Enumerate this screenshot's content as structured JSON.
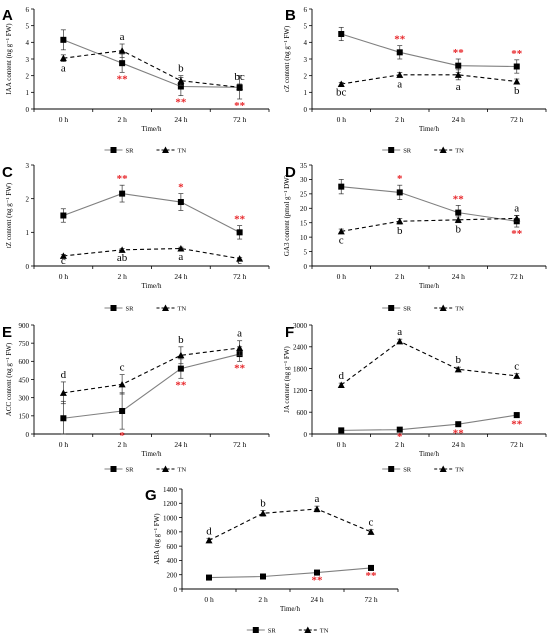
{
  "colors": {
    "sr": "#808080",
    "tn": "#000000",
    "sig": "#e8272b",
    "axis": "#000000"
  },
  "chart_data": [
    {
      "type": "line",
      "panel": "A",
      "categories": [
        "0 h",
        "2 h",
        "24 h",
        "72 h"
      ],
      "xlabel": "Time/h",
      "ylabel": "IAA content (ng g⁻¹ FW)",
      "ylim": [
        0,
        6
      ],
      "yticks": [
        0,
        1,
        2,
        3,
        4,
        5,
        6
      ],
      "series": [
        {
          "name": "SR",
          "values": [
            4.15,
            2.75,
            1.35,
            1.3
          ],
          "errors": [
            0.6,
            0.55,
            0.55,
            0.7
          ]
        },
        {
          "name": "TN",
          "values": [
            3.05,
            3.5,
            1.7,
            1.3
          ],
          "errors": [
            0.2,
            0.4,
            0.3,
            0.2
          ]
        }
      ],
      "letters": [
        "a",
        "a",
        "b",
        "bc"
      ],
      "significance": [
        "",
        "**",
        "**",
        "**"
      ]
    },
    {
      "type": "line",
      "panel": "B",
      "categories": [
        "0 h",
        "2 h",
        "24 h",
        "72 h"
      ],
      "xlabel": "Time/h",
      "ylabel": "cZ content (ng g⁻¹ FW)",
      "ylim": [
        0,
        6
      ],
      "yticks": [
        0,
        1,
        2,
        3,
        4,
        5,
        6
      ],
      "series": [
        {
          "name": "SR",
          "values": [
            4.5,
            3.4,
            2.6,
            2.55
          ],
          "errors": [
            0.4,
            0.4,
            0.4,
            0.4
          ]
        },
        {
          "name": "TN",
          "values": [
            1.5,
            2.05,
            2.05,
            1.65
          ],
          "errors": [
            0.1,
            0.15,
            0.3,
            0.15
          ]
        }
      ],
      "letters": [
        "bc",
        "a",
        "a",
        "b"
      ],
      "significance": [
        "",
        "**",
        "**",
        "**"
      ]
    },
    {
      "type": "line",
      "panel": "C",
      "categories": [
        "0 h",
        "2 h",
        "24 h",
        "72 h"
      ],
      "xlabel": "Time/h",
      "ylabel": "tZ content (ng g⁻¹ FW)",
      "ylim": [
        0,
        3
      ],
      "yticks": [
        0,
        1,
        2,
        3
      ],
      "series": [
        {
          "name": "SR",
          "values": [
            1.5,
            2.15,
            1.9,
            1.0
          ],
          "errors": [
            0.2,
            0.25,
            0.25,
            0.2
          ]
        },
        {
          "name": "TN",
          "values": [
            0.3,
            0.48,
            0.52,
            0.22
          ],
          "errors": [
            0.04,
            0.04,
            0.04,
            0.03
          ]
        }
      ],
      "letters": [
        "c",
        "ab",
        "a",
        "c"
      ],
      "significance": [
        "",
        "**",
        "*",
        "**"
      ]
    },
    {
      "type": "line",
      "panel": "D",
      "categories": [
        "0 h",
        "2 h",
        "24 h",
        "72 h"
      ],
      "xlabel": "Time/h",
      "ylabel": "GA3 content (pmol g⁻¹ DW)",
      "ylim": [
        0,
        35
      ],
      "yticks": [
        0,
        5,
        10,
        15,
        20,
        25,
        30,
        35
      ],
      "series": [
        {
          "name": "SR",
          "values": [
            27.5,
            25.5,
            18.5,
            15.5
          ],
          "errors": [
            2.5,
            2.5,
            2.5,
            2.0
          ]
        },
        {
          "name": "TN",
          "values": [
            12.0,
            15.5,
            16.0,
            16.5
          ],
          "errors": [
            0.8,
            1.0,
            1.0,
            1.0
          ]
        }
      ],
      "letters": [
        "c",
        "b",
        "b",
        "a"
      ],
      "significance": [
        "",
        "*",
        "**",
        "**"
      ]
    },
    {
      "type": "line",
      "panel": "E",
      "categories": [
        "0 h",
        "2 h",
        "24 h",
        "72 h"
      ],
      "xlabel": "Time/h",
      "ylabel": "ACC content (ng g⁻¹ FW)",
      "ylim": [
        0,
        900
      ],
      "yticks": [
        0,
        150,
        300,
        450,
        600,
        750,
        900
      ],
      "series": [
        {
          "name": "SR",
          "values": [
            130,
            190,
            540,
            660
          ],
          "errors": [
            140,
            150,
            80,
            60
          ]
        },
        {
          "name": "TN",
          "values": [
            340,
            410,
            650,
            710
          ],
          "errors": [
            90,
            80,
            70,
            60
          ]
        }
      ],
      "letters": [
        "d",
        "c",
        "b",
        "a"
      ],
      "significance": [
        "",
        "*",
        "**",
        "**"
      ]
    },
    {
      "type": "line",
      "panel": "F",
      "categories": [
        "0 h",
        "2 h",
        "24 h",
        "72 h"
      ],
      "xlabel": "Time/h",
      "ylabel": "JA content (ng g⁻¹ FW)",
      "ylim": [
        0,
        3000
      ],
      "yticks": [
        0,
        600,
        1200,
        1800,
        2400,
        3000
      ],
      "series": [
        {
          "name": "SR",
          "values": [
            100,
            120,
            270,
            520
          ],
          "errors": [
            50,
            50,
            60,
            70
          ]
        },
        {
          "name": "TN",
          "values": [
            1350,
            2550,
            1780,
            1600
          ],
          "errors": [
            50,
            60,
            60,
            60
          ]
        }
      ],
      "letters": [
        "d",
        "a",
        "b",
        "c"
      ],
      "significance": [
        "",
        "*",
        "**",
        "**"
      ]
    },
    {
      "type": "line",
      "panel": "G",
      "categories": [
        "0 h",
        "2 h",
        "24 h",
        "72 h"
      ],
      "xlabel": "Time/h",
      "ylabel": "ABA (ng g⁻¹ FW)",
      "ylim": [
        0,
        1400
      ],
      "yticks": [
        0,
        200,
        400,
        600,
        800,
        1000,
        1200,
        1400
      ],
      "series": [
        {
          "name": "SR",
          "values": [
            160,
            175,
            230,
            295
          ],
          "errors": [
            15,
            15,
            15,
            15
          ]
        },
        {
          "name": "TN",
          "values": [
            680,
            1060,
            1120,
            800
          ],
          "errors": [
            30,
            40,
            40,
            30
          ]
        }
      ],
      "letters": [
        "d",
        "b",
        "a",
        "c"
      ],
      "significance": [
        "",
        "",
        "**",
        "**"
      ]
    }
  ]
}
